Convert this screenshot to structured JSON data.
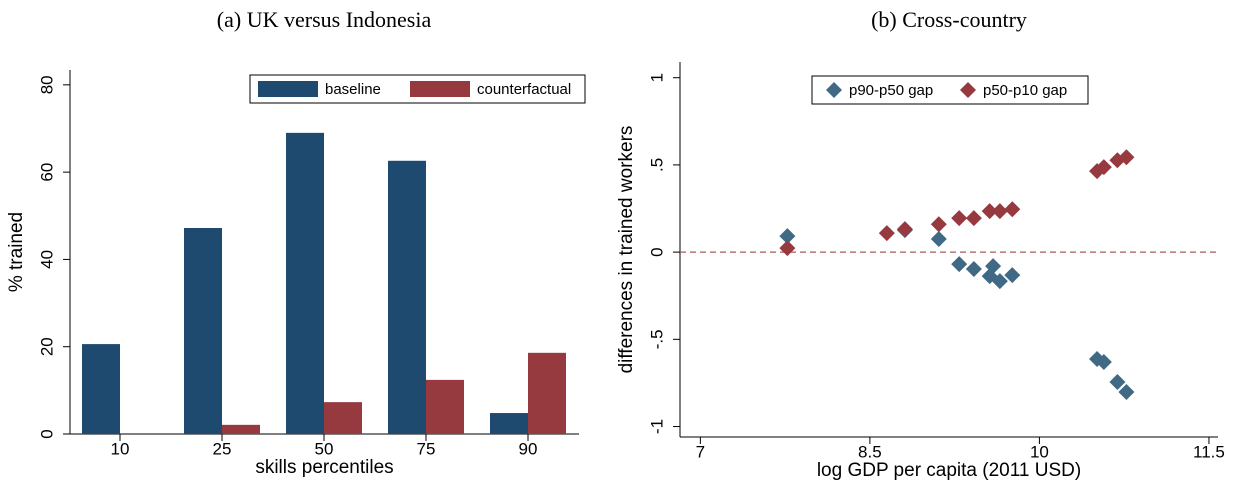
{
  "chart_data": [
    {
      "type": "bar",
      "title": "(a) UK versus Indonesia",
      "x_label": "skills percentiles",
      "y_label": "% trained",
      "categories": [
        "10",
        "25",
        "50",
        "75",
        "90"
      ],
      "series": [
        {
          "name": "baseline",
          "color": "#1f4a70",
          "values": [
            20.6,
            47.2,
            69.0,
            62.6,
            4.8
          ]
        },
        {
          "name": "counterfactual",
          "color": "#963a40",
          "values": [
            0,
            2.1,
            7.3,
            12.4,
            18.6
          ]
        }
      ],
      "ylim": [
        0,
        83.4
      ],
      "yticks": [
        0,
        20,
        40,
        60,
        80
      ],
      "legend": "top-right"
    },
    {
      "type": "scatter",
      "title": "(b) Cross-country",
      "x_label": "log GDP per capita (2011 USD)",
      "y_label": "differences in trained workers",
      "series": [
        {
          "name": "p90-p50 gap",
          "color": "#3f6985",
          "x": [
            7.77,
            8.81,
            9.11,
            9.29,
            9.42,
            9.56,
            9.59,
            9.65,
            9.76,
            10.51,
            10.57,
            10.69,
            10.77
          ],
          "values": [
            0.092,
            0.126,
            0.075,
            -0.069,
            -0.097,
            -0.138,
            -0.08,
            -0.166,
            -0.132,
            -0.613,
            -0.63,
            -0.745,
            -0.802
          ]
        },
        {
          "name": "p50-p10 gap",
          "color": "#963a40",
          "x": [
            7.77,
            8.65,
            8.81,
            9.11,
            9.29,
            9.42,
            9.56,
            9.65,
            9.76,
            10.51,
            10.57,
            10.69,
            10.77
          ],
          "values": [
            0.023,
            0.109,
            0.132,
            0.16,
            0.195,
            0.195,
            0.235,
            0.235,
            0.246,
            0.464,
            0.487,
            0.527,
            0.544
          ]
        }
      ],
      "xlim": [
        6.82,
        11.58
      ],
      "xticks": [
        7,
        8.5,
        10,
        11.5
      ],
      "ylim": [
        -1.06,
        1.09
      ],
      "yticks": [
        -1,
        {
          "value": -0.5,
          "label": "-.5"
        },
        0,
        {
          "value": 0.5,
          "label": ".5"
        },
        1
      ],
      "reference_line": 0,
      "legend": "top"
    }
  ]
}
